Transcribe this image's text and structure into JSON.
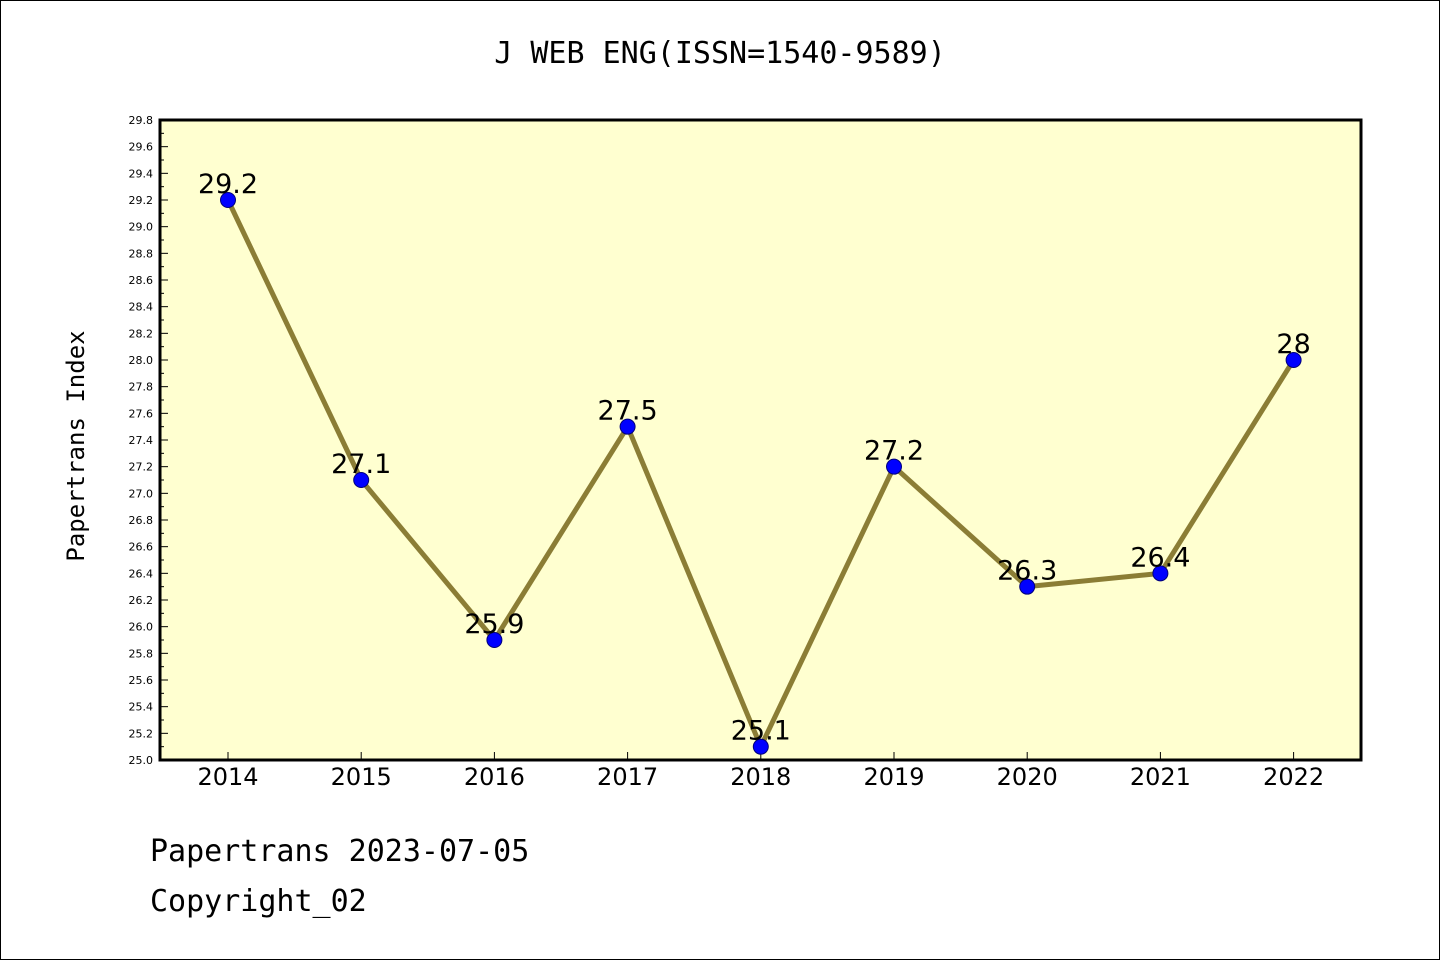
{
  "chart_data": {
    "type": "line",
    "title": "J WEB ENG(ISSN=1540-9589)",
    "xlabel": "",
    "ylabel": "Papertrans Index",
    "x": [
      "2014",
      "2015",
      "2016",
      "2017",
      "2018",
      "2019",
      "2020",
      "2021",
      "2022"
    ],
    "series": [
      {
        "values": [
          29.2,
          27.1,
          25.9,
          27.5,
          25.1,
          27.2,
          26.3,
          26.4,
          28.0
        ],
        "data_labels": [
          "29.2",
          "27.1",
          "25.9",
          "27.5",
          "25.1",
          "27.2",
          "26.3",
          "26.4",
          "28"
        ],
        "line_color": "#8b7d35",
        "marker_color": "#0000ff"
      }
    ],
    "ylim": [
      25.0,
      29.8
    ],
    "yticks": [
      "25.0",
      "25.2",
      "25.4",
      "25.6",
      "25.8",
      "26.0",
      "26.2",
      "26.4",
      "26.6",
      "26.8",
      "27.0",
      "27.2",
      "27.4",
      "27.6",
      "27.8",
      "28.0",
      "28.2",
      "28.4",
      "28.6",
      "28.8",
      "29.0",
      "29.2",
      "29.4",
      "29.6",
      "29.8"
    ],
    "grid": false,
    "legend": "none",
    "plot_background": "#ffffd0"
  },
  "footer": {
    "line1": "Papertrans 2023-07-05",
    "line2": "Copyright_02"
  }
}
